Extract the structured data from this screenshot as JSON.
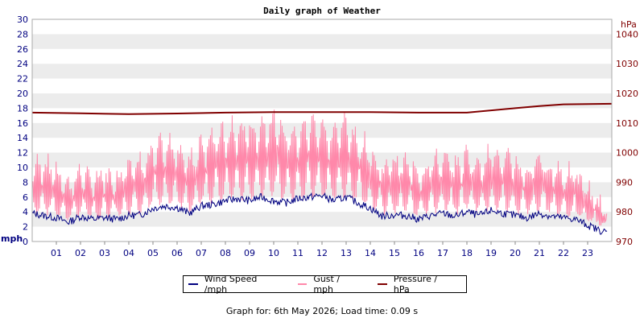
{
  "chart_data": {
    "type": "line",
    "title": "Daily graph of Weather",
    "y_left": {
      "unit": "mph",
      "min": 0,
      "max": 30,
      "ticks": [
        0,
        2,
        4,
        6,
        8,
        10,
        12,
        14,
        16,
        18,
        20,
        22,
        24,
        26,
        28,
        30
      ]
    },
    "y_right": {
      "unit": "hPa",
      "min": 970,
      "max": 1045,
      "ticks": [
        970,
        980,
        990,
        1000,
        1010,
        1020,
        1030,
        1040
      ]
    },
    "x": {
      "min": 0,
      "max": 24,
      "tick_labels": [
        "01",
        "02",
        "03",
        "04",
        "05",
        "06",
        "07",
        "08",
        "09",
        "10",
        "11",
        "12",
        "13",
        "14",
        "15",
        "16",
        "17",
        "18",
        "19",
        "20",
        "21",
        "22",
        "23"
      ]
    },
    "grid": "horizontal bands",
    "legend_position": "bottom",
    "series": [
      {
        "name": "Wind Speed /mph",
        "axis": "left",
        "color": "#000080",
        "x": [
          0,
          0.5,
          1,
          1.5,
          2,
          2.5,
          3,
          3.5,
          4,
          4.5,
          5,
          5.5,
          6,
          6.5,
          7,
          7.5,
          8,
          8.5,
          9,
          9.5,
          10,
          10.5,
          11,
          11.5,
          12,
          12.5,
          13,
          13.5,
          14,
          14.5,
          15,
          15.5,
          16,
          16.5,
          17,
          17.5,
          18,
          18.5,
          19,
          19.5,
          20,
          20.5,
          21,
          21.5,
          22,
          22.5,
          23,
          23.5,
          23.8
        ],
        "values": [
          3.8,
          3.5,
          3.2,
          2.6,
          3.4,
          3.0,
          3.2,
          3.0,
          3.5,
          3.6,
          4.5,
          4.8,
          4.6,
          3.8,
          4.8,
          5.0,
          5.5,
          5.8,
          5.5,
          6.0,
          5.5,
          5.2,
          5.8,
          6.0,
          6.2,
          5.5,
          6.0,
          5.2,
          4.5,
          3.4,
          3.6,
          3.5,
          3.0,
          3.5,
          3.8,
          3.4,
          4.0,
          3.5,
          4.2,
          3.8,
          3.5,
          3.2,
          3.8,
          3.4,
          3.2,
          3.0,
          2.2,
          1.5,
          1.2
        ]
      },
      {
        "name": "Gust / mph",
        "axis": "left",
        "color": "#ff88aa",
        "x": [
          0,
          0.5,
          1,
          1.5,
          2,
          2.5,
          3,
          3.5,
          4,
          4.5,
          5,
          5.5,
          6,
          6.5,
          7,
          7.5,
          8,
          8.5,
          9,
          9.5,
          10,
          10.5,
          11,
          11.5,
          12,
          12.5,
          13,
          13.5,
          14,
          14.5,
          15,
          15.5,
          16,
          16.5,
          17,
          17.5,
          18,
          18.5,
          19,
          19.5,
          20,
          20.5,
          21,
          21.5,
          22,
          22.5,
          23,
          23.5,
          23.8
        ],
        "values": [
          8.5,
          9.0,
          8.0,
          6.5,
          8.0,
          7.0,
          7.5,
          7.5,
          9.0,
          9.0,
          10.5,
          11.0,
          11.0,
          9.0,
          11.5,
          12.0,
          12.5,
          13.0,
          13.0,
          13.5,
          14.0,
          12.5,
          13.0,
          13.5,
          13.5,
          12.5,
          13.5,
          12.0,
          10.5,
          8.5,
          9.0,
          9.0,
          8.0,
          9.0,
          9.5,
          8.5,
          10.0,
          9.0,
          10.0,
          9.5,
          9.0,
          8.0,
          9.5,
          8.5,
          8.0,
          7.5,
          6.0,
          4.5,
          3.5
        ]
      },
      {
        "name": "Pressure / hPa",
        "axis": "right",
        "color": "#800000",
        "x": [
          0,
          2,
          4,
          6,
          8,
          10,
          12,
          14,
          16,
          18,
          20,
          21,
          22,
          23,
          24
        ],
        "values": [
          1013.5,
          1013.3,
          1013.0,
          1013.2,
          1013.5,
          1013.7,
          1013.7,
          1013.7,
          1013.5,
          1013.5,
          1015.0,
          1015.7,
          1016.3,
          1016.4,
          1016.5
        ]
      }
    ],
    "legend": [
      {
        "label": "Wind Speed /mph",
        "color": "#000080"
      },
      {
        "label": "Gust / mph",
        "color": "#ff88aa"
      },
      {
        "label": "Pressure / hPa",
        "color": "#800000"
      }
    ]
  },
  "footer": {
    "text": "Graph for: 6th May 2026; Load time: 0.09 s"
  }
}
